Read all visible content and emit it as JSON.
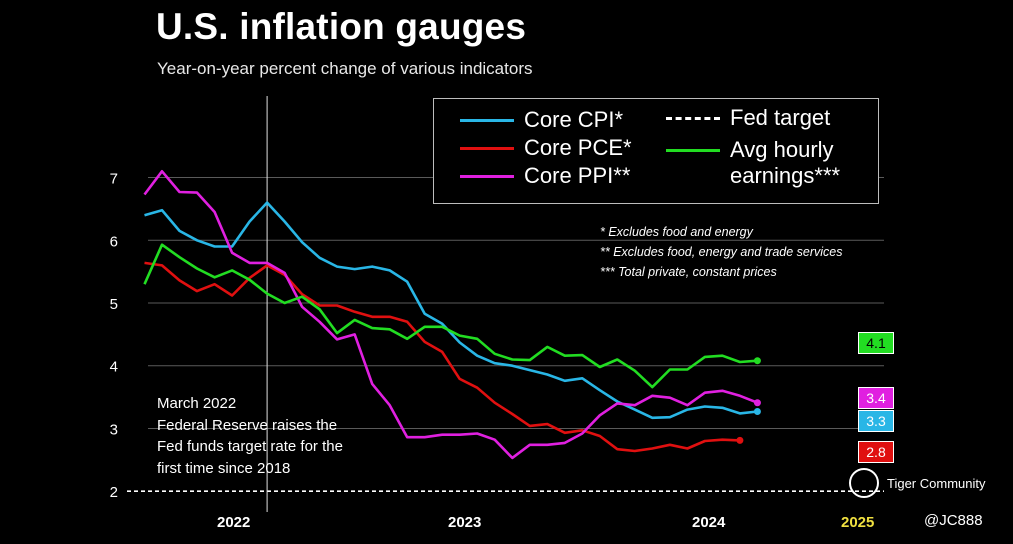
{
  "title": "U.S. inflation gauges",
  "subtitle": "Year-on-year percent change of various indicators",
  "legend": {
    "core_cpi": "Core CPI*",
    "core_pce": "Core PCE*",
    "core_ppi": "Core PPI**",
    "fed_target": "Fed target",
    "avg_hourly_1": "Avg hourly",
    "avg_hourly_2": "earnings***"
  },
  "notes": {
    "n1": "* Excludes food and energy",
    "n2": "** Excludes food, energy and trade services",
    "n3": "*** Total private, constant prices"
  },
  "annotation": {
    "l1": "March 2022",
    "l2": "Federal Reserve raises the",
    "l3": "Fed funds target rate for the",
    "l4": "first time since 2018"
  },
  "years": {
    "y2022": "2022",
    "y2023": "2023",
    "y2024": "2024",
    "y2025": "2025"
  },
  "badges": {
    "avg_hourly": "4.1",
    "core_ppi": "3.4",
    "core_cpi": "3.3",
    "core_pce": "2.8"
  },
  "watermark": {
    "brand": "Tiger Community",
    "handle": "@JC888"
  },
  "colors": {
    "core_cpi": "#29b6e6",
    "core_pce": "#e01010",
    "core_ppi": "#e020e0",
    "avg_hourly": "#22dd22",
    "fed_target": "#ffffff",
    "year_2025": "#f0e040"
  },
  "chart_data": {
    "type": "line",
    "title": "U.S. inflation gauges",
    "subtitle": "Year-on-year percent change of various indicators",
    "xlabel": "",
    "ylabel": "",
    "x_tick_labels": [
      "2022",
      "2023",
      "2024",
      "2025"
    ],
    "y_tick_labels": [
      "2",
      "3",
      "4",
      "5",
      "6",
      "7"
    ],
    "ylim": [
      1.7,
      8.3
    ],
    "x_range": [
      "2021-07",
      "2025-02"
    ],
    "grid": true,
    "legend_position": "top-right",
    "fed_target": 2,
    "event_marker": "2022-03",
    "series": [
      {
        "name": "Core CPI*",
        "key": "core_cpi",
        "points": [
          [
            "2021-08",
            6.4
          ],
          [
            "2021-09",
            6.48
          ],
          [
            "2021-10",
            6.15
          ],
          [
            "2021-11",
            6.0
          ],
          [
            "2021-12",
            5.9
          ],
          [
            "2022-01",
            5.9
          ],
          [
            "2022-02",
            6.3
          ],
          [
            "2022-03",
            6.6
          ],
          [
            "2022-04",
            6.3
          ],
          [
            "2022-05",
            5.97
          ],
          [
            "2022-06",
            5.72
          ],
          [
            "2022-07",
            5.58
          ],
          [
            "2022-08",
            5.54
          ],
          [
            "2022-09",
            5.58
          ],
          [
            "2022-10",
            5.52
          ],
          [
            "2022-11",
            5.34
          ],
          [
            "2022-12",
            4.83
          ],
          [
            "2023-01",
            4.67
          ],
          [
            "2023-02",
            4.37
          ],
          [
            "2023-03",
            4.16
          ],
          [
            "2023-04",
            4.04
          ],
          [
            "2023-05",
            4.0
          ],
          [
            "2023-06",
            3.93
          ],
          [
            "2023-07",
            3.86
          ],
          [
            "2023-08",
            3.76
          ],
          [
            "2023-09",
            3.8
          ],
          [
            "2023-10",
            3.61
          ],
          [
            "2023-11",
            3.43
          ],
          [
            "2023-12",
            3.3
          ],
          [
            "2024-01",
            3.17
          ],
          [
            "2024-02",
            3.18
          ],
          [
            "2024-03",
            3.3
          ],
          [
            "2024-04",
            3.35
          ],
          [
            "2024-05",
            3.33
          ],
          [
            "2024-06",
            3.24
          ],
          [
            "2024-07",
            3.27
          ]
        ]
      },
      {
        "name": "Core PCE*",
        "key": "core_pce",
        "points": [
          [
            "2021-08",
            5.64
          ],
          [
            "2021-09",
            5.6
          ],
          [
            "2021-10",
            5.36
          ],
          [
            "2021-11",
            5.19
          ],
          [
            "2021-12",
            5.3
          ],
          [
            "2022-01",
            5.12
          ],
          [
            "2022-02",
            5.4
          ],
          [
            "2022-03",
            5.6
          ],
          [
            "2022-04",
            5.45
          ],
          [
            "2022-05",
            5.14
          ],
          [
            "2022-06",
            4.96
          ],
          [
            "2022-07",
            4.96
          ],
          [
            "2022-08",
            4.86
          ],
          [
            "2022-09",
            4.78
          ],
          [
            "2022-10",
            4.78
          ],
          [
            "2022-11",
            4.7
          ],
          [
            "2022-12",
            4.38
          ],
          [
            "2023-01",
            4.22
          ],
          [
            "2023-02",
            3.79
          ],
          [
            "2023-03",
            3.65
          ],
          [
            "2023-04",
            3.41
          ],
          [
            "2023-05",
            3.23
          ],
          [
            "2023-06",
            3.04
          ],
          [
            "2023-07",
            3.07
          ],
          [
            "2023-08",
            2.93
          ],
          [
            "2023-09",
            2.97
          ],
          [
            "2023-10",
            2.88
          ],
          [
            "2023-11",
            2.67
          ],
          [
            "2023-12",
            2.64
          ],
          [
            "2024-01",
            2.68
          ],
          [
            "2024-02",
            2.74
          ],
          [
            "2024-03",
            2.68
          ],
          [
            "2024-04",
            2.8
          ],
          [
            "2024-05",
            2.82
          ],
          [
            "2024-06",
            2.81
          ]
        ]
      },
      {
        "name": "Core PPI**",
        "key": "core_ppi",
        "points": [
          [
            "2021-08",
            6.73
          ],
          [
            "2021-09",
            7.1
          ],
          [
            "2021-10",
            6.77
          ],
          [
            "2021-11",
            6.76
          ],
          [
            "2021-12",
            6.45
          ],
          [
            "2022-01",
            5.8
          ],
          [
            "2022-02",
            5.64
          ],
          [
            "2022-03",
            5.64
          ],
          [
            "2022-04",
            5.48
          ],
          [
            "2022-05",
            4.94
          ],
          [
            "2022-06",
            4.7
          ],
          [
            "2022-07",
            4.42
          ],
          [
            "2022-08",
            4.5
          ],
          [
            "2022-09",
            3.71
          ],
          [
            "2022-10",
            3.37
          ],
          [
            "2022-11",
            2.86
          ],
          [
            "2022-12",
            2.86
          ],
          [
            "2023-01",
            2.9
          ],
          [
            "2023-02",
            2.9
          ],
          [
            "2023-03",
            2.92
          ],
          [
            "2023-04",
            2.82
          ],
          [
            "2023-05",
            2.53
          ],
          [
            "2023-06",
            2.74
          ],
          [
            "2023-07",
            2.74
          ],
          [
            "2023-08",
            2.77
          ],
          [
            "2023-09",
            2.92
          ],
          [
            "2023-10",
            3.21
          ],
          [
            "2023-11",
            3.4
          ],
          [
            "2023-12",
            3.37
          ],
          [
            "2024-01",
            3.52
          ],
          [
            "2024-02",
            3.49
          ],
          [
            "2024-03",
            3.37
          ],
          [
            "2024-04",
            3.57
          ],
          [
            "2024-05",
            3.6
          ],
          [
            "2024-06",
            3.52
          ],
          [
            "2024-07",
            3.41
          ]
        ]
      },
      {
        "name": "Avg hourly earnings***",
        "key": "avg_hourly",
        "points": [
          [
            "2021-08",
            5.3
          ],
          [
            "2021-09",
            5.93
          ],
          [
            "2021-10",
            5.73
          ],
          [
            "2021-11",
            5.55
          ],
          [
            "2021-12",
            5.41
          ],
          [
            "2022-01",
            5.52
          ],
          [
            "2022-02",
            5.37
          ],
          [
            "2022-03",
            5.15
          ],
          [
            "2022-04",
            5.0
          ],
          [
            "2022-05",
            5.1
          ],
          [
            "2022-06",
            4.9
          ],
          [
            "2022-07",
            4.52
          ],
          [
            "2022-08",
            4.73
          ],
          [
            "2022-09",
            4.6
          ],
          [
            "2022-10",
            4.58
          ],
          [
            "2022-11",
            4.43
          ],
          [
            "2022-12",
            4.62
          ],
          [
            "2023-01",
            4.62
          ],
          [
            "2023-02",
            4.48
          ],
          [
            "2023-03",
            4.43
          ],
          [
            "2023-04",
            4.19
          ],
          [
            "2023-05",
            4.1
          ],
          [
            "2023-06",
            4.09
          ],
          [
            "2023-07",
            4.3
          ],
          [
            "2023-08",
            4.16
          ],
          [
            "2023-09",
            4.17
          ],
          [
            "2023-10",
            3.98
          ],
          [
            "2023-11",
            4.1
          ],
          [
            "2023-12",
            3.92
          ],
          [
            "2024-01",
            3.66
          ],
          [
            "2024-02",
            3.94
          ],
          [
            "2024-03",
            3.94
          ],
          [
            "2024-04",
            4.14
          ],
          [
            "2024-05",
            4.16
          ],
          [
            "2024-06",
            4.06
          ],
          [
            "2024-07",
            4.08
          ]
        ]
      }
    ],
    "end_labels": {
      "Avg hourly earnings***": 4.1,
      "Core PPI**": 3.4,
      "Core CPI*": 3.3,
      "Core PCE*": 2.8
    }
  }
}
